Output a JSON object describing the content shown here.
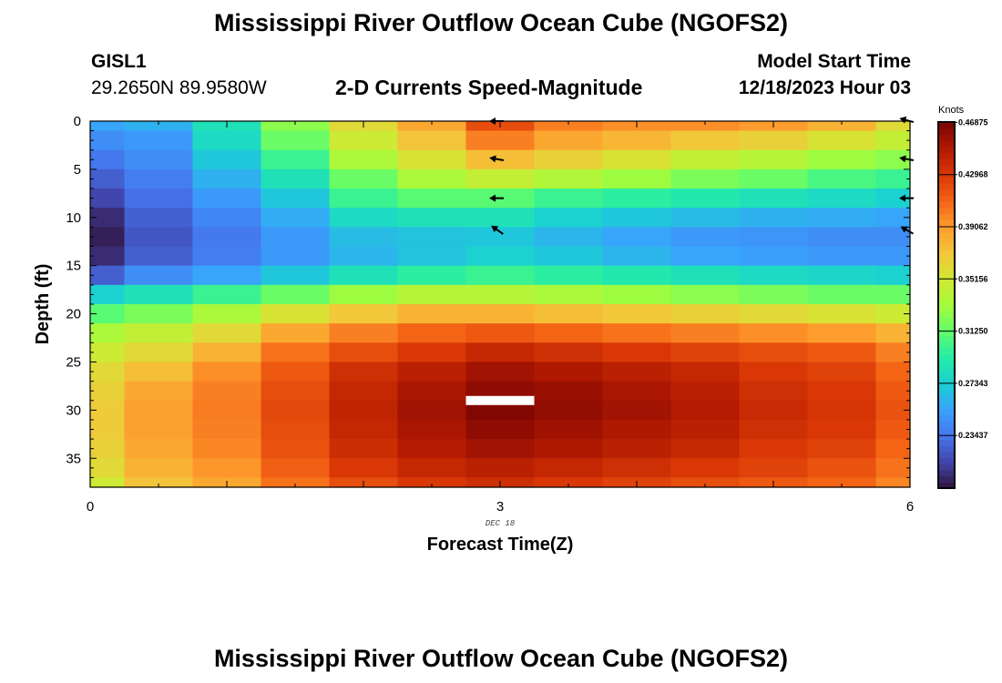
{
  "header": {
    "title": "Mississippi River Outflow Ocean Cube (NGOFS2)",
    "station_id": "GISL1",
    "station_coords": "29.2650N  89.9580W",
    "plot_title": "2-D Currents Speed-Magnitude",
    "start_label": "Model Start Time",
    "start_value": "12/18/2023 Hour 03"
  },
  "footer": {
    "title": "Mississippi River Outflow Ocean Cube (NGOFS2)"
  },
  "chart_data": {
    "type": "heatmap",
    "xlabel": "Forecast Time(Z)",
    "ylabel": "Depth (ft)",
    "x_ticks": [
      0,
      3,
      6
    ],
    "x_tick_labels": [
      "0",
      "3",
      "6"
    ],
    "x_note": "DEC 18",
    "xlim": [
      0,
      6
    ],
    "y_ticks": [
      0,
      5,
      10,
      15,
      20,
      25,
      30,
      35
    ],
    "y_tick_labels": [
      "0",
      "5",
      "10",
      "15",
      "20",
      "25",
      "30",
      "35"
    ],
    "ylim": [
      0,
      38
    ],
    "y_inverted": true,
    "colorbar": {
      "unit": "Knots",
      "range": [
        0.195,
        0.469
      ],
      "tick_labels": [
        "0.46875",
        "0.42968",
        "0.39062",
        "0.35156",
        "0.31250",
        "0.27343",
        "0.23437"
      ],
      "tick_values": [
        0.46875,
        0.42968,
        0.39062,
        0.35156,
        0.3125,
        0.27343,
        0.23437
      ],
      "colors": [
        "#30123b",
        "#4145ab",
        "#4675ed",
        "#39a2fc",
        "#1bcfd4",
        "#24eca6",
        "#61fc6c",
        "#a4fc3b",
        "#d1e834",
        "#f3c63a",
        "#fe9b2d",
        "#f36315",
        "#d93806",
        "#b11901",
        "#7a0403"
      ]
    },
    "time_columns": [
      0,
      0.5,
      1,
      1.5,
      2,
      2.5,
      3,
      3.5,
      4,
      4.5,
      5,
      5.5,
      6
    ],
    "depth_levels": [
      0,
      2,
      4,
      6,
      8,
      10,
      12,
      14,
      16,
      18,
      20,
      22,
      24,
      26,
      28,
      30,
      32,
      34,
      36,
      38
    ],
    "speed_knots": [
      [
        0.255,
        0.26,
        0.285,
        0.325,
        0.36,
        0.385,
        0.42,
        0.4,
        0.395,
        0.395,
        0.39,
        0.38,
        0.36
      ],
      [
        0.245,
        0.25,
        0.28,
        0.315,
        0.35,
        0.372,
        0.4,
        0.385,
        0.378,
        0.37,
        0.365,
        0.355,
        0.345
      ],
      [
        0.235,
        0.245,
        0.27,
        0.3,
        0.335,
        0.355,
        0.375,
        0.365,
        0.355,
        0.345,
        0.34,
        0.33,
        0.325
      ],
      [
        0.225,
        0.238,
        0.26,
        0.285,
        0.315,
        0.335,
        0.345,
        0.338,
        0.33,
        0.32,
        0.315,
        0.305,
        0.3
      ],
      [
        0.215,
        0.232,
        0.25,
        0.27,
        0.3,
        0.31,
        0.31,
        0.3,
        0.295,
        0.29,
        0.285,
        0.28,
        0.275
      ],
      [
        0.205,
        0.226,
        0.242,
        0.258,
        0.28,
        0.285,
        0.285,
        0.275,
        0.27,
        0.265,
        0.26,
        0.258,
        0.255
      ],
      [
        0.2,
        0.222,
        0.236,
        0.25,
        0.265,
        0.268,
        0.27,
        0.262,
        0.255,
        0.25,
        0.248,
        0.245,
        0.245
      ],
      [
        0.205,
        0.225,
        0.238,
        0.25,
        0.262,
        0.268,
        0.275,
        0.27,
        0.262,
        0.255,
        0.252,
        0.25,
        0.25
      ],
      [
        0.225,
        0.245,
        0.255,
        0.27,
        0.285,
        0.295,
        0.3,
        0.295,
        0.29,
        0.285,
        0.28,
        0.278,
        0.275
      ],
      [
        0.275,
        0.285,
        0.3,
        0.315,
        0.33,
        0.34,
        0.34,
        0.335,
        0.33,
        0.325,
        0.32,
        0.315,
        0.315
      ],
      [
        0.31,
        0.32,
        0.335,
        0.355,
        0.37,
        0.38,
        0.38,
        0.375,
        0.37,
        0.365,
        0.36,
        0.355,
        0.35
      ],
      [
        0.335,
        0.345,
        0.36,
        0.385,
        0.4,
        0.41,
        0.415,
        0.41,
        0.405,
        0.4,
        0.395,
        0.39,
        0.38
      ],
      [
        0.35,
        0.36,
        0.38,
        0.405,
        0.42,
        0.43,
        0.44,
        0.435,
        0.43,
        0.425,
        0.42,
        0.415,
        0.4
      ],
      [
        0.36,
        0.375,
        0.395,
        0.415,
        0.435,
        0.445,
        0.455,
        0.45,
        0.445,
        0.44,
        0.43,
        0.425,
        0.41
      ],
      [
        0.365,
        0.385,
        0.4,
        0.42,
        0.44,
        0.452,
        0.462,
        0.458,
        0.452,
        0.445,
        0.435,
        0.43,
        0.415
      ],
      [
        0.368,
        0.388,
        0.402,
        0.422,
        0.442,
        0.455,
        0.466,
        0.46,
        0.455,
        0.448,
        0.438,
        0.432,
        0.418
      ],
      [
        0.368,
        0.388,
        0.4,
        0.42,
        0.44,
        0.452,
        0.462,
        0.456,
        0.45,
        0.445,
        0.435,
        0.43,
        0.415
      ],
      [
        0.365,
        0.385,
        0.398,
        0.418,
        0.436,
        0.448,
        0.455,
        0.45,
        0.445,
        0.44,
        0.43,
        0.425,
        0.41
      ],
      [
        0.36,
        0.38,
        0.392,
        0.412,
        0.43,
        0.44,
        0.445,
        0.44,
        0.435,
        0.43,
        0.425,
        0.418,
        0.405
      ],
      [
        0.35,
        0.372,
        0.385,
        0.405,
        0.42,
        0.43,
        0.435,
        0.43,
        0.425,
        0.42,
        0.415,
        0.41,
        0.398
      ]
    ],
    "arrows": [
      {
        "t": 3,
        "depth": 0,
        "dir_deg": 180
      },
      {
        "t": 3,
        "depth": 4,
        "dir_deg": 170
      },
      {
        "t": 3,
        "depth": 8,
        "dir_deg": 180
      },
      {
        "t": 3,
        "depth": 11.5,
        "dir_deg": 145
      },
      {
        "t": 6,
        "depth": 0,
        "dir_deg": 165
      },
      {
        "t": 6,
        "depth": 4,
        "dir_deg": 170
      },
      {
        "t": 6,
        "depth": 8,
        "dir_deg": 180
      },
      {
        "t": 6,
        "depth": 11.5,
        "dir_deg": 150
      }
    ],
    "marker": {
      "t_start": 2.75,
      "t_end": 3.25,
      "depth": 29
    }
  }
}
